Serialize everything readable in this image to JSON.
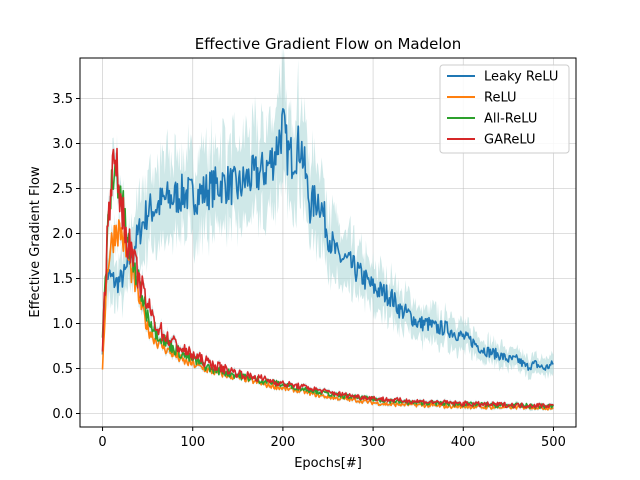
{
  "chart_data": {
    "type": "line",
    "title": "Effective Gradient Flow on Madelon",
    "xlabel": "Epochs[#]",
    "ylabel": "Effective Gradient Flow",
    "xlim": [
      -25,
      525
    ],
    "ylim": [
      -0.15,
      3.95
    ],
    "xticks": [
      0,
      100,
      200,
      300,
      400,
      500
    ],
    "yticks": [
      0.0,
      0.5,
      1.0,
      1.5,
      2.0,
      2.5,
      3.0,
      3.5
    ],
    "xtick_labels": [
      "0",
      "100",
      "200",
      "300",
      "400",
      "500"
    ],
    "ytick_labels": [
      "0.0",
      "0.5",
      "1.0",
      "1.5",
      "2.0",
      "2.5",
      "3.0",
      "3.5"
    ],
    "grid": true,
    "legend_position": "upper right",
    "band_color": "#a8d5d5",
    "series": [
      {
        "name": "Leaky ReLU",
        "color": "#1f77b4",
        "x": [
          0,
          5,
          10,
          15,
          20,
          25,
          30,
          40,
          50,
          60,
          70,
          80,
          90,
          100,
          110,
          120,
          130,
          140,
          150,
          160,
          170,
          180,
          190,
          200,
          205,
          210,
          220,
          230,
          240,
          250,
          260,
          270,
          280,
          290,
          300,
          310,
          320,
          330,
          340,
          350,
          360,
          370,
          380,
          390,
          400,
          410,
          420,
          430,
          440,
          450,
          460,
          470,
          480,
          490,
          500
        ],
        "y": [
          0.72,
          1.55,
          1.5,
          1.45,
          1.48,
          1.55,
          1.7,
          2.0,
          2.25,
          2.3,
          2.38,
          2.4,
          2.45,
          2.42,
          2.45,
          2.5,
          2.55,
          2.55,
          2.5,
          2.6,
          2.65,
          2.7,
          2.85,
          3.2,
          2.9,
          2.85,
          3.0,
          2.3,
          2.4,
          2.0,
          1.75,
          1.7,
          1.6,
          1.5,
          1.4,
          1.35,
          1.3,
          1.15,
          1.1,
          1.0,
          1.0,
          0.95,
          0.95,
          0.9,
          0.85,
          0.8,
          0.72,
          0.68,
          0.65,
          0.6,
          0.6,
          0.52,
          0.55,
          0.5,
          0.55
        ],
        "spread": 0.18
      },
      {
        "name": "ReLU",
        "color": "#ff7f0e",
        "x": [
          0,
          5,
          10,
          15,
          20,
          25,
          30,
          40,
          50,
          60,
          70,
          80,
          90,
          100,
          120,
          140,
          160,
          180,
          200,
          220,
          240,
          260,
          280,
          300,
          320,
          340,
          360,
          380,
          400,
          420,
          440,
          460,
          480,
          500
        ],
        "y": [
          0.52,
          1.6,
          1.9,
          2.05,
          2.03,
          1.85,
          1.65,
          1.3,
          0.95,
          0.8,
          0.72,
          0.65,
          0.58,
          0.55,
          0.47,
          0.42,
          0.38,
          0.32,
          0.28,
          0.25,
          0.2,
          0.17,
          0.15,
          0.12,
          0.1,
          0.1,
          0.09,
          0.08,
          0.08,
          0.07,
          0.07,
          0.07,
          0.07,
          0.06
        ],
        "spread": 0.05
      },
      {
        "name": "All-ReLU",
        "color": "#2ca02c",
        "x": [
          0,
          5,
          10,
          15,
          20,
          25,
          30,
          40,
          50,
          60,
          70,
          80,
          90,
          100,
          120,
          140,
          160,
          180,
          200,
          220,
          240,
          260,
          280,
          300,
          320,
          340,
          360,
          380,
          400,
          420,
          440,
          460,
          480,
          500
        ],
        "y": [
          0.8,
          1.9,
          2.55,
          2.7,
          2.5,
          2.1,
          1.8,
          1.45,
          1.1,
          0.9,
          0.8,
          0.72,
          0.65,
          0.6,
          0.5,
          0.45,
          0.4,
          0.36,
          0.32,
          0.28,
          0.24,
          0.2,
          0.18,
          0.16,
          0.14,
          0.12,
          0.12,
          0.11,
          0.1,
          0.1,
          0.09,
          0.09,
          0.08,
          0.08
        ],
        "spread": 0.05
      },
      {
        "name": "GAReLU",
        "color": "#d62728",
        "x": [
          0,
          5,
          10,
          15,
          20,
          25,
          30,
          40,
          50,
          60,
          70,
          80,
          90,
          100,
          120,
          140,
          160,
          180,
          200,
          220,
          240,
          260,
          280,
          300,
          320,
          340,
          360,
          380,
          400,
          420,
          440,
          460,
          480,
          500
        ],
        "y": [
          0.75,
          1.95,
          2.7,
          2.72,
          2.4,
          2.05,
          1.85,
          1.5,
          1.2,
          0.98,
          0.85,
          0.78,
          0.7,
          0.65,
          0.55,
          0.48,
          0.42,
          0.38,
          0.33,
          0.3,
          0.26,
          0.22,
          0.19,
          0.17,
          0.15,
          0.14,
          0.13,
          0.12,
          0.11,
          0.1,
          0.1,
          0.09,
          0.09,
          0.09
        ],
        "spread": 0.05
      }
    ]
  }
}
